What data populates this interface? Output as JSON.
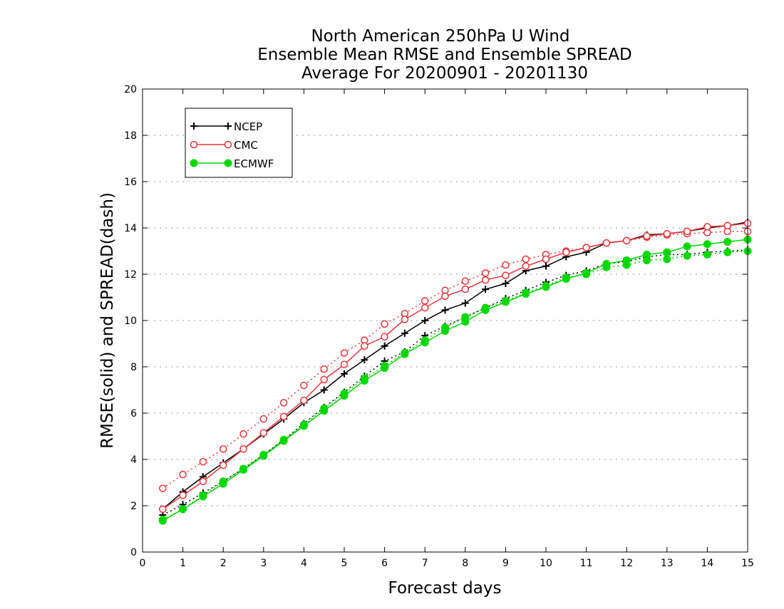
{
  "chart_data": {
    "type": "line",
    "title_lines": [
      "North American 250hPa U Wind",
      "Ensemble Mean RMSE and Ensemble SPREAD",
      "Average For 20200901 - 20201130"
    ],
    "xlabel": "Forecast days",
    "ylabel": "RMSE(solid) and SPREAD(dash)",
    "xlim": [
      0,
      15
    ],
    "ylim": [
      0,
      20
    ],
    "x_ticks": [
      "0",
      "1",
      "2",
      "3",
      "4",
      "5",
      "6",
      "7",
      "8",
      "9",
      "10",
      "11",
      "12",
      "13",
      "14",
      "15"
    ],
    "y_ticks": [
      "0",
      "2",
      "4",
      "6",
      "8",
      "10",
      "12",
      "14",
      "16",
      "18",
      "20"
    ],
    "grid": "horizontal dotted",
    "legend_position": "top-left",
    "x": [
      0.5,
      1,
      1.5,
      2,
      2.5,
      3,
      3.5,
      4,
      4.5,
      5,
      5.5,
      6,
      6.5,
      7,
      7.5,
      8,
      8.5,
      9,
      9.5,
      10,
      10.5,
      11,
      11.5,
      12,
      12.5,
      13,
      13.5,
      14,
      14.5,
      15
    ],
    "series": [
      {
        "name": "NCEP",
        "color": "#000000",
        "marker": "plus",
        "rmse": [
          1.85,
          2.6,
          3.25,
          3.85,
          4.45,
          5.1,
          5.75,
          6.45,
          7.0,
          7.7,
          8.3,
          8.9,
          9.45,
          10.0,
          10.45,
          10.75,
          11.35,
          11.6,
          12.15,
          12.35,
          12.75,
          12.95,
          13.35,
          13.45,
          13.7,
          13.75,
          13.85,
          14.0,
          14.1,
          14.25
        ],
        "spread": [
          1.6,
          2.05,
          2.55,
          3.05,
          3.6,
          4.2,
          4.85,
          5.55,
          6.25,
          6.9,
          7.6,
          8.25,
          8.65,
          9.35,
          9.75,
          10.15,
          10.55,
          10.95,
          11.3,
          11.65,
          11.95,
          12.15,
          12.45,
          12.55,
          12.75,
          12.85,
          12.85,
          12.95,
          13.0,
          13.05
        ]
      },
      {
        "name": "CMC",
        "color": "#e8363a",
        "marker": "open-circle",
        "rmse": [
          1.85,
          2.45,
          3.05,
          3.75,
          4.45,
          5.15,
          5.85,
          6.55,
          7.45,
          8.1,
          8.9,
          9.3,
          10.05,
          10.55,
          11.05,
          11.35,
          11.75,
          11.95,
          12.35,
          12.65,
          12.95,
          13.15,
          13.35,
          13.45,
          13.65,
          13.75,
          13.85,
          14.05,
          14.1,
          14.2
        ],
        "spread": [
          2.75,
          3.35,
          3.9,
          4.45,
          5.1,
          5.75,
          6.45,
          7.2,
          7.9,
          8.6,
          9.15,
          9.85,
          10.3,
          10.85,
          11.3,
          11.7,
          12.05,
          12.4,
          12.65,
          12.85,
          13.0,
          13.15,
          13.35,
          13.45,
          13.6,
          13.7,
          13.75,
          13.8,
          13.85,
          13.85
        ]
      },
      {
        "name": "ECMWF",
        "color": "#00d800",
        "marker": "filled-circle",
        "rmse": [
          1.35,
          1.85,
          2.4,
          2.95,
          3.55,
          4.15,
          4.8,
          5.45,
          6.1,
          6.75,
          7.4,
          7.95,
          8.55,
          9.05,
          9.55,
          9.95,
          10.45,
          10.8,
          11.15,
          11.45,
          11.8,
          12.05,
          12.45,
          12.6,
          12.85,
          12.95,
          13.2,
          13.3,
          13.4,
          13.5
        ],
        "spread": [
          1.4,
          1.85,
          2.45,
          3.05,
          3.6,
          4.2,
          4.85,
          5.5,
          6.2,
          6.85,
          7.5,
          8.05,
          8.6,
          9.15,
          9.7,
          10.15,
          10.55,
          10.85,
          11.2,
          11.5,
          11.85,
          12.0,
          12.3,
          12.4,
          12.6,
          12.65,
          12.8,
          12.85,
          12.95,
          13.0
        ]
      }
    ]
  }
}
